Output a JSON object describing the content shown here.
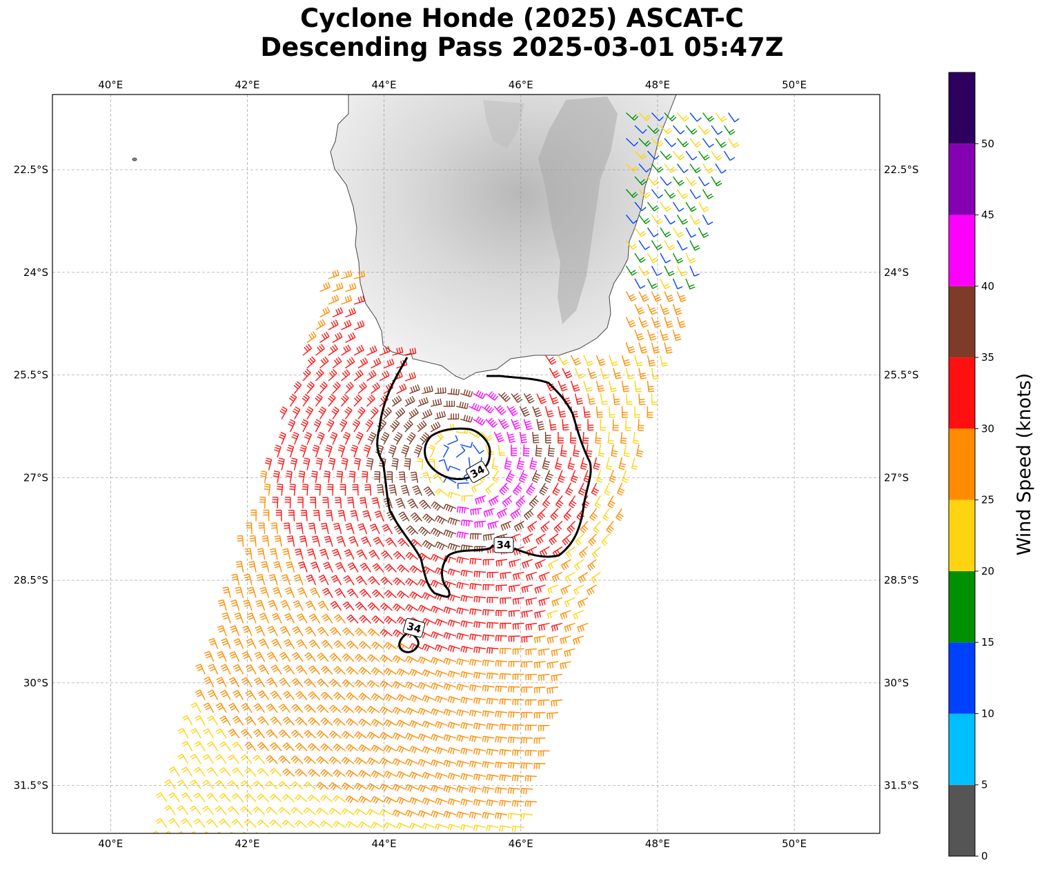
{
  "title": {
    "line1": "Cyclone Honde (2025) ASCAT-C",
    "line2": "Descending Pass 2025-03-01 05:47Z"
  },
  "map": {
    "lon_labels": [
      "40°E",
      "42°E",
      "44°E",
      "46°E",
      "48°E",
      "50°E"
    ],
    "lon_values": [
      40,
      42,
      44,
      46,
      48,
      50
    ],
    "lat_labels": [
      "22.5°S",
      "24°S",
      "25.5°S",
      "27°S",
      "28.5°S",
      "30°S",
      "31.5°S"
    ],
    "lat_values": [
      -22.5,
      -24,
      -25.5,
      -27,
      -28.5,
      -30,
      -31.5
    ],
    "lon_range": [
      39.15,
      51.25
    ],
    "lat_range": [
      -32.2,
      -21.4
    ],
    "land_name": "Madagascar (southern tip, grayscale terrain)",
    "grid": true,
    "wind_barbs": "colored by speed",
    "contour_level_labels": [
      "34",
      "34",
      "34"
    ],
    "contour_color": "#000000"
  },
  "colorbar": {
    "label": "Wind Speed (knots)",
    "tick_labels": [
      "0",
      "5",
      "10",
      "15",
      "20",
      "25",
      "30",
      "35",
      "40",
      "45",
      "50"
    ],
    "bins": [
      {
        "from": 0,
        "to": 5,
        "color": "#555555"
      },
      {
        "from": 5,
        "to": 10,
        "color": "#00bfff"
      },
      {
        "from": 10,
        "to": 15,
        "color": "#0040ff"
      },
      {
        "from": 15,
        "to": 20,
        "color": "#009000"
      },
      {
        "from": 20,
        "to": 25,
        "color": "#ffd310"
      },
      {
        "from": 25,
        "to": 30,
        "color": "#ff8c00"
      },
      {
        "from": 30,
        "to": 35,
        "color": "#ff1010"
      },
      {
        "from": 35,
        "to": 40,
        "color": "#7e3b28"
      },
      {
        "from": 40,
        "to": 45,
        "color": "#ff00ff"
      },
      {
        "from": 45,
        "to": 50,
        "color": "#8400b0"
      },
      {
        "from": 50,
        "to": 55,
        "color": "#2d0060"
      }
    ]
  }
}
